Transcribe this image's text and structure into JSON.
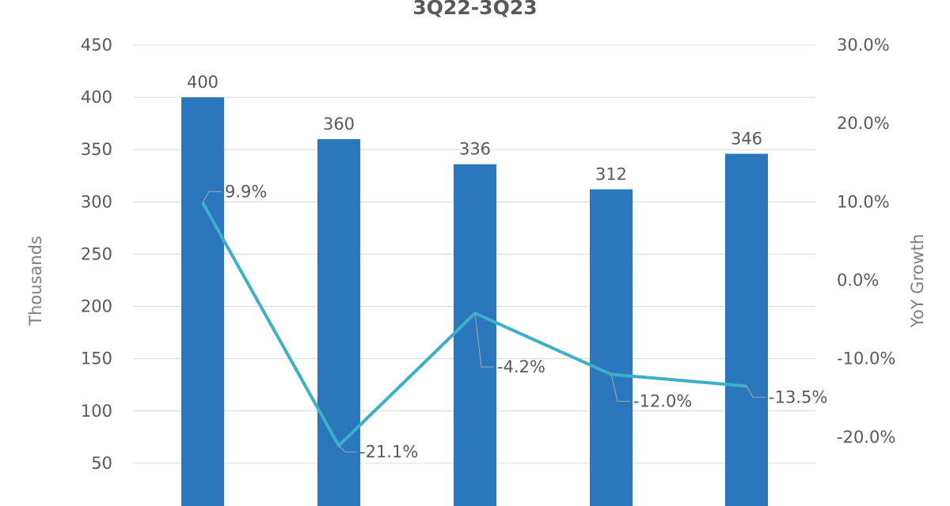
{
  "chart_data": {
    "type": "bar",
    "title": "3Q22-3Q23",
    "y_left_label": "Thousands",
    "y_right_label": "YoY Growth",
    "y_left_ticks": [
      "50",
      "100",
      "150",
      "200",
      "250",
      "300",
      "350",
      "400",
      "450"
    ],
    "y_right_ticks": [
      "30.0%",
      "20.0%",
      "10.0%",
      "0.0%",
      "-10.0%",
      "-20.0%"
    ],
    "ylim_left": [
      0,
      450
    ],
    "ylim_right": [
      -30,
      30
    ],
    "grid": true,
    "series": [
      {
        "type": "bar",
        "axis": "left",
        "color": "#2a77bd",
        "values": [
          400,
          360,
          336,
          312,
          346
        ],
        "labels": [
          "400",
          "360",
          "336",
          "312",
          "346"
        ]
      },
      {
        "type": "line",
        "axis": "right",
        "color": "#3bb0c9",
        "values": [
          9.9,
          -21.1,
          -4.2,
          -12.0,
          -13.5
        ],
        "labels": [
          "9.9%",
          "-21.1%",
          "-4.2%",
          "-12.0%",
          "-13.5%"
        ]
      }
    ]
  }
}
